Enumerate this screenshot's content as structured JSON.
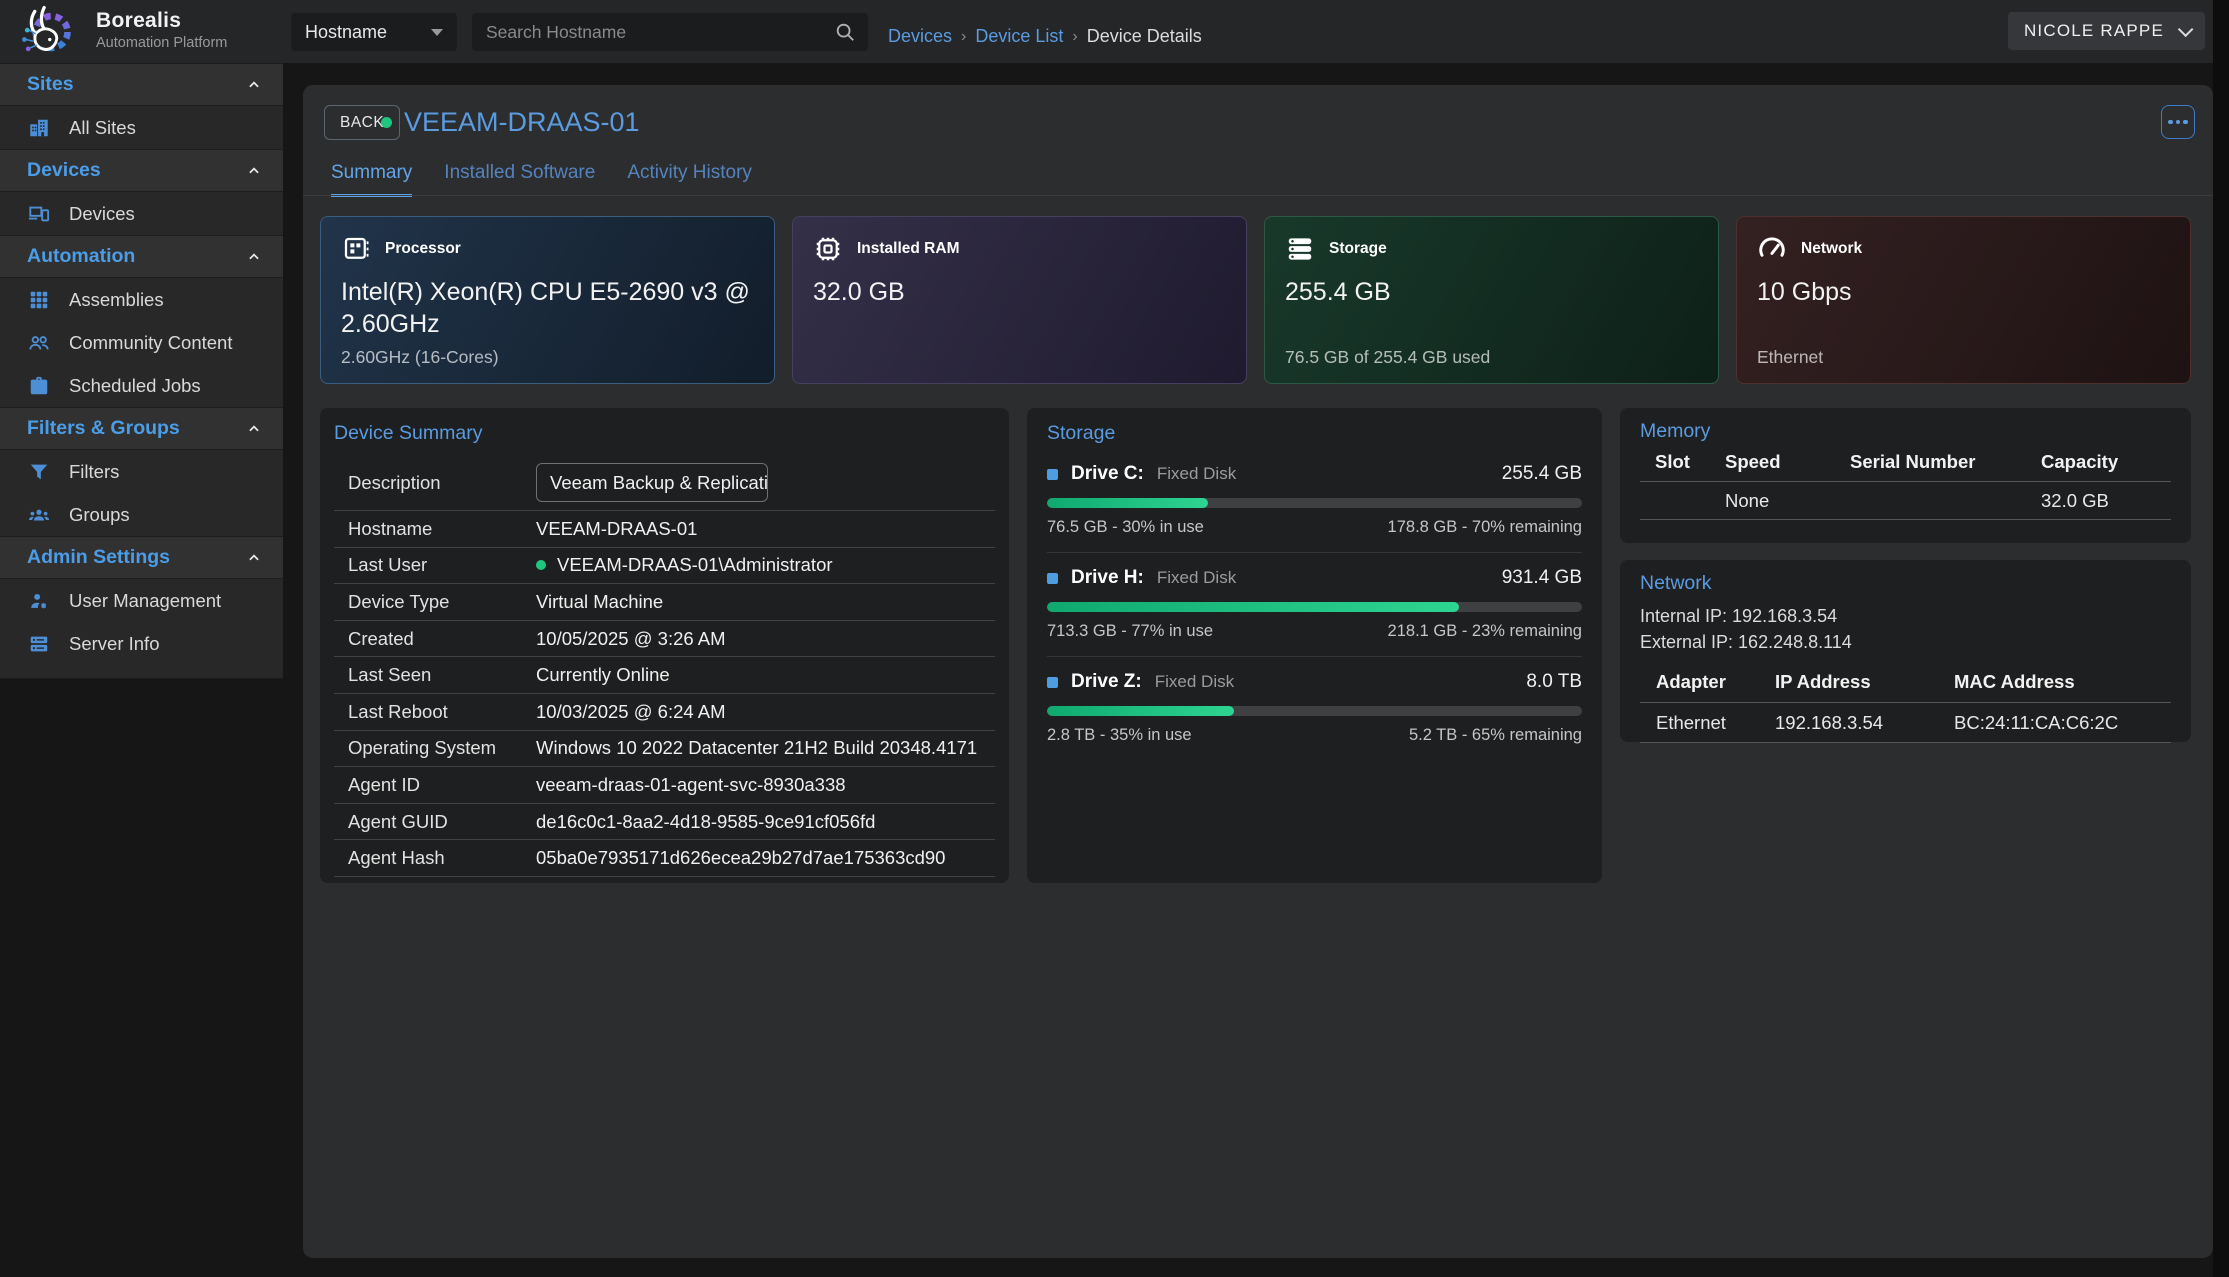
{
  "brand": {
    "name": "Borealis",
    "tagline": "Automation Platform"
  },
  "topbar": {
    "filter_selected": "Hostname",
    "search_placeholder": "Search Hostname",
    "breadcrumb_sep": "›",
    "breadcrumbs": [
      "Devices",
      "Device List",
      "Device Details"
    ],
    "user_name": "NICOLE RAPPE"
  },
  "sidebar": {
    "sections": [
      {
        "label": "Sites",
        "items": [
          "All Sites"
        ]
      },
      {
        "label": "Devices",
        "items": [
          "Devices"
        ]
      },
      {
        "label": "Automation",
        "items": [
          "Assemblies",
          "Community Content",
          "Scheduled Jobs"
        ]
      },
      {
        "label": "Filters & Groups",
        "items": [
          "Filters",
          "Groups"
        ]
      },
      {
        "label": "Admin Settings",
        "items": [
          "User Management",
          "Server Info"
        ]
      }
    ]
  },
  "device": {
    "back_label": "BACK",
    "name": "VEEAM-DRAAS-01",
    "status": "online",
    "tabs": [
      "Summary",
      "Installed Software",
      "Activity History"
    ]
  },
  "stat_cards": [
    {
      "label": "Processor",
      "value": "Intel(R) Xeon(R) CPU E5-2690 v3 @ 2.60GHz",
      "subtitle": "2.60GHz (16-Cores)"
    },
    {
      "label": "Installed RAM",
      "value": "32.0 GB",
      "subtitle": ""
    },
    {
      "label": "Storage",
      "value": "255.4 GB",
      "subtitle": "76.5 GB of 255.4 GB used"
    },
    {
      "label": "Network",
      "value": "10 Gbps",
      "subtitle": "Ethernet"
    }
  ],
  "summary": {
    "title": "Device Summary",
    "description_label": "Description",
    "description_value": "Veeam Backup & Replication",
    "rows": [
      {
        "label": "Hostname",
        "value": "VEEAM-DRAAS-01"
      },
      {
        "label": "Last User",
        "value": "VEEAM-DRAAS-01\\Administrator"
      },
      {
        "label": "Device Type",
        "value": "Virtual Machine"
      },
      {
        "label": "Created",
        "value": "10/05/2025 @ 3:26 AM"
      },
      {
        "label": "Last Seen",
        "value": "Currently Online"
      },
      {
        "label": "Last Reboot",
        "value": "10/03/2025 @ 6:24 AM"
      },
      {
        "label": "Operating System",
        "value": "Windows 10 2022 Datacenter 21H2 Build 20348.4171"
      },
      {
        "label": "Agent ID",
        "value": "veeam-draas-01-agent-svc-8930a338"
      },
      {
        "label": "Agent GUID",
        "value": "de16c0c1-8aa2-4d18-9585-9ce91cf056fd"
      },
      {
        "label": "Agent Hash",
        "value": "05ba0e7935171d626ecea29b27d7ae175363cd90"
      }
    ]
  },
  "storage_panel": {
    "title": "Storage",
    "drives": [
      {
        "name": "Drive C:",
        "type": "Fixed Disk",
        "size": "255.4 GB",
        "used_pct": 30,
        "used_text": "76.5 GB - 30% in use",
        "remaining_text": "178.8 GB - 70% remaining"
      },
      {
        "name": "Drive H:",
        "type": "Fixed Disk",
        "size": "931.4 GB",
        "used_pct": 77,
        "used_text": "713.3 GB - 77% in use",
        "remaining_text": "218.1 GB - 23% remaining"
      },
      {
        "name": "Drive Z:",
        "type": "Fixed Disk",
        "size": "8.0 TB",
        "used_pct": 35,
        "used_text": "2.8 TB - 35% in use",
        "remaining_text": "5.2 TB - 65% remaining"
      }
    ]
  },
  "memory_panel": {
    "title": "Memory",
    "headers": [
      "Slot",
      "Speed",
      "Serial Number",
      "Capacity"
    ],
    "rows": [
      [
        "",
        "None",
        "",
        "32.0 GB"
      ]
    ]
  },
  "network_panel": {
    "title": "Network",
    "internal_ip": "Internal IP: 192.168.3.54",
    "external_ip": "External IP: 162.248.8.114",
    "headers": [
      "Adapter",
      "IP Address",
      "MAC Address"
    ],
    "rows": [
      [
        "Ethernet",
        "192.168.3.54",
        "BC:24:11:CA:C6:2C"
      ]
    ]
  },
  "colors": {
    "accent_blue": "#5b9be0",
    "online_green": "#1fc77e",
    "bar_green_start": "#0fa970",
    "bar_green_end": "#2ed492"
  }
}
